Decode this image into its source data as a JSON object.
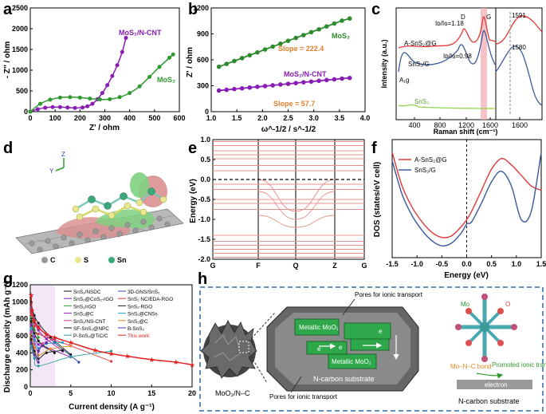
{
  "panels": [
    "a",
    "b",
    "c",
    "d",
    "e",
    "f",
    "g",
    "h"
  ],
  "chart_data": [
    {
      "id": "a",
      "type": "line",
      "xlabel": "Z' / ohm",
      "ylabel": "- Z'' / ohm",
      "xlim": [
        0,
        600
      ],
      "ylim": [
        0,
        2500
      ],
      "xticks": [
        "0",
        "100",
        "200",
        "300",
        "400",
        "500",
        "600"
      ],
      "yticks": [
        "0",
        "500",
        "1000",
        "1500",
        "2000",
        "2500"
      ],
      "series": [
        {
          "name": "MoS₂/N-CNT",
          "color": "#8a1bb5",
          "x": [
            0,
            30,
            60,
            90,
            120,
            150,
            180,
            210,
            230,
            250,
            270,
            290,
            310,
            330,
            350,
            370,
            385
          ],
          "y": [
            0,
            60,
            95,
            110,
            110,
            100,
            90,
            100,
            130,
            190,
            300,
            450,
            640,
            860,
            1120,
            1440,
            1780
          ]
        },
        {
          "name": "MoS₂",
          "color": "#2e9a2e",
          "x": [
            0,
            40,
            80,
            120,
            160,
            200,
            240,
            280,
            320,
            360,
            400,
            440,
            480,
            520,
            560,
            575
          ],
          "y": [
            0,
            190,
            290,
            340,
            350,
            340,
            315,
            295,
            300,
            350,
            450,
            610,
            840,
            1080,
            1300,
            1380
          ]
        }
      ]
    },
    {
      "id": "b",
      "type": "line",
      "xlabel": "ω^-1/2 / s^-1/2",
      "ylabel": "Z' / ohm",
      "xlim": [
        1.0,
        4.0
      ],
      "ylim": [
        0,
        1200
      ],
      "xticks": [
        "1.0",
        "1.5",
        "2.0",
        "2.5",
        "3.0",
        "3.5",
        "4.0"
      ],
      "yticks": [
        "0",
        "300",
        "600",
        "900",
        "1200"
      ],
      "series": [
        {
          "name": "MoS₂",
          "color": "#2e8a2e",
          "slope_label": "Slope = 222.4",
          "x": [
            1.15,
            1.3,
            1.45,
            1.6,
            1.75,
            1.9,
            2.05,
            2.2,
            2.35,
            2.5,
            2.65,
            2.8,
            2.95,
            3.1,
            3.25,
            3.4,
            3.55,
            3.7
          ],
          "y": [
            520,
            553,
            586,
            620,
            653,
            686,
            720,
            753,
            786,
            820,
            853,
            886,
            920,
            953,
            986,
            1020,
            1053,
            1078
          ]
        },
        {
          "name": "MoS₂/N-CNT",
          "color": "#8a1bb5",
          "slope_label": "Slope = 57.7",
          "x": [
            1.15,
            1.3,
            1.45,
            1.6,
            1.75,
            1.9,
            2.05,
            2.2,
            2.35,
            2.5,
            2.65,
            2.8,
            2.95,
            3.1,
            3.25,
            3.4,
            3.55,
            3.7
          ],
          "y": [
            245,
            253,
            262,
            270,
            279,
            288,
            296,
            305,
            314,
            322,
            331,
            340,
            348,
            357,
            366,
            374,
            383,
            390
          ]
        }
      ]
    },
    {
      "id": "c",
      "type": "line",
      "xlabel": "Raman shift (cm⁻¹)",
      "ylabel": "Intensity (a.u.)",
      "xticks": [
        "400",
        "800",
        "1200",
        "1600"
      ],
      "inset_xticks": [
        "1600"
      ],
      "labels": [
        "A-SnS₂@G",
        "SnS₂/G",
        "SnS₂",
        "A₁g",
        "D",
        "G"
      ],
      "ratios": [
        "Iᴅ/Iɢ=1.18",
        "Iᴅ/Iɢ=0.98"
      ],
      "peaks": [
        "1591",
        "1580"
      ]
    },
    {
      "id": "e",
      "type": "line",
      "xlabel": "",
      "ylabel": "Energy (eV)",
      "ylim": [
        -2.0,
        1.0
      ],
      "yticks": [
        "1.0",
        "0.5",
        "0.0",
        "-0.5",
        "-1.0",
        "-1.5",
        "-2.0"
      ],
      "kpoints": [
        "G",
        "F",
        "Q",
        "Z",
        "G"
      ]
    },
    {
      "id": "f",
      "type": "line",
      "xlabel": "Energy (eV)",
      "ylabel": "DOS (states/eV cell)",
      "xlim": [
        -1.5,
        1.5
      ],
      "xticks": [
        "-1.5",
        "-1.0",
        "-0.5",
        "0.0",
        "0.5",
        "1.0",
        "1.5"
      ],
      "series": [
        {
          "name": "A-SnS₂@G",
          "color": "#e0393c",
          "x": [
            -1.5,
            -1.3,
            -1.1,
            -0.9,
            -0.7,
            -0.5,
            -0.3,
            -0.1,
            0.0,
            0.1,
            0.3,
            0.5,
            0.7,
            0.9,
            1.1,
            1.3,
            1.5
          ],
          "y": [
            25,
            17,
            12,
            8.5,
            6,
            4.8,
            5.2,
            7.5,
            9,
            11,
            16,
            21,
            23.5,
            22,
            19.5,
            17,
            16
          ]
        },
        {
          "name": "SnS₂/G",
          "color": "#3a5a9e",
          "x": [
            -1.5,
            -1.3,
            -1.1,
            -0.9,
            -0.7,
            -0.5,
            -0.3,
            -0.1,
            0.0,
            0.1,
            0.3,
            0.5,
            0.7,
            0.9,
            1.1,
            1.3,
            1.5
          ],
          "y": [
            23,
            15,
            10,
            6.5,
            4,
            2.8,
            3.5,
            6,
            8,
            8.5,
            13,
            18,
            20.5,
            17,
            9,
            11,
            25
          ]
        }
      ]
    },
    {
      "id": "g",
      "type": "line",
      "xlabel": "Current density (A g⁻¹)",
      "ylabel": "Discharge capacity (mAh g⁻¹)",
      "xlim": [
        0,
        20
      ],
      "ylim": [
        0,
        1200
      ],
      "xticks": [
        "0",
        "5",
        "10",
        "15",
        "20"
      ],
      "yticks": [
        "0",
        "200",
        "400",
        "600",
        "800",
        "1000",
        "1200"
      ],
      "legend": [
        "SnS₂/NSDC",
        "3D-GNS/SnS₂",
        "SnS₂@CoS₂-rGO",
        "SnS₂ NC/EDA-RGO",
        "SnS₂/rGO",
        "SnS₂-RGO",
        "SnS₂@C",
        "SnS₂@CNSs",
        "SnS₂/NS-CNT",
        "SnS₂@C",
        "SF-SnS₂@NPC",
        "B-SnS₂",
        "P-SnS₂@TiC/C",
        "This work"
      ],
      "series": [
        {
          "name": "This work",
          "color": "#e02020",
          "x": [
            0.1,
            0.2,
            0.5,
            1,
            2,
            3,
            5,
            8,
            10,
            12,
            15,
            18,
            20
          ],
          "y": [
            1080,
            900,
            780,
            700,
            620,
            580,
            520,
            430,
            390,
            360,
            320,
            290,
            260
          ]
        }
      ]
    }
  ],
  "d": {
    "axes": [
      "Z",
      "Y"
    ],
    "legend": [
      "C",
      "S",
      "Sn"
    ]
  },
  "h": {
    "left_label": "MoO₂/N–C",
    "pores_top": "Pores for ionic transport",
    "pores_bottom": "Pores for ionic transport",
    "metallic1": "Metallic MoO₂",
    "metallic2": "Metallic MoO₂",
    "electron_e": "e",
    "substrate": "N-carbon substrate",
    "mo": "Mo",
    "o": "O",
    "bond": "Mo–N–C bond",
    "promoted": "Promoted ionic transfer",
    "electron": "electron",
    "substrate2": "N-carbon substrate"
  }
}
